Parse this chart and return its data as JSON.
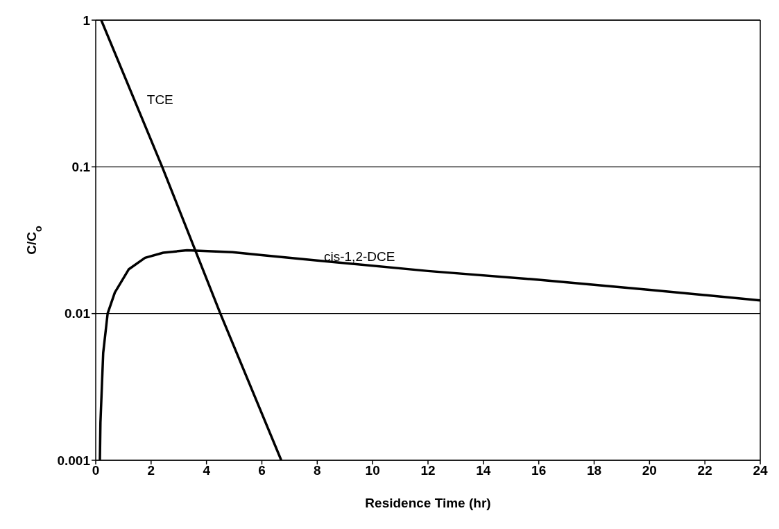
{
  "chart_data": {
    "type": "line",
    "xlabel": "Residence Time (hr)",
    "ylabel": "C/C$_{o}$",
    "log": "y",
    "xlim": [
      0,
      24
    ],
    "xticks": [
      0,
      2,
      4,
      6,
      8,
      10,
      12,
      14,
      16,
      18,
      20,
      22,
      24
    ],
    "ylim": [
      0.001,
      1
    ],
    "yticks": [
      0.001,
      0.01,
      0.1,
      1
    ],
    "grid": "y",
    "legend": false,
    "marker": "none",
    "line_style": "solid",
    "series": [
      {
        "name": "TCE",
        "color": "#000000",
        "x": [
          0.2,
          2.4,
          4.5,
          6.7
        ],
        "values": [
          1,
          0.1,
          0.01,
          0.001
        ]
      },
      {
        "name": "cis-1,2-DCE",
        "color": "#000000",
        "x": [
          0.15,
          0.17,
          0.27,
          0.43,
          0.69,
          1.19,
          1.78,
          2.44,
          3.3,
          4.94,
          6,
          8,
          12,
          16,
          20,
          24
        ],
        "values": [
          0.001,
          0.0018,
          0.0054,
          0.01,
          0.0139,
          0.02,
          0.024,
          0.026,
          0.027,
          0.0262,
          0.025,
          0.023,
          0.0195,
          0.017,
          0.0145,
          0.0123
        ]
      }
    ]
  }
}
